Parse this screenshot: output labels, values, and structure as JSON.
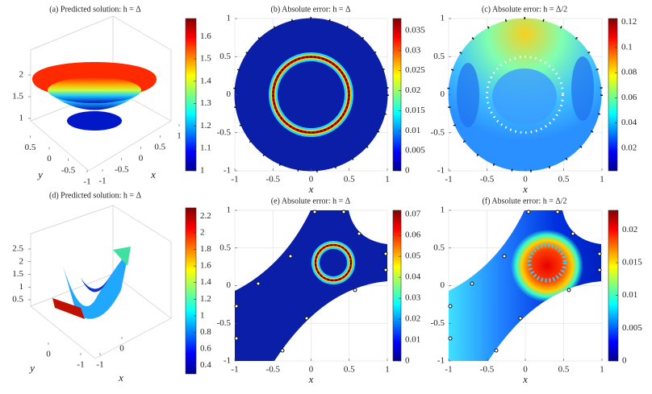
{
  "chart_data": [
    {
      "type": "surface",
      "title": "(a) Predicted solution: h = Δ",
      "xlabel": "x",
      "ylabel": "y",
      "xlim": [
        -1,
        1
      ],
      "ylim": [
        -1,
        1
      ],
      "zlim": [
        1,
        2
      ],
      "xticks": [
        -1,
        -0.5,
        0,
        0.5,
        1
      ],
      "yticks": [
        0.5,
        0,
        -0.5,
        -1
      ],
      "zticks": [
        1,
        1.5,
        2
      ],
      "colormap": "jet",
      "colorbar": {
        "lim": [
          1,
          1.68
        ],
        "ticks": [
          1,
          1.1,
          1.2,
          1.3,
          1.4,
          1.5,
          1.6
        ]
      }
    },
    {
      "type": "heatmap",
      "title": "(b) Absolute error: h = Δ",
      "xlabel": "x",
      "xlim": [
        -1,
        1
      ],
      "ylim": [
        -1,
        1
      ],
      "xticks": [
        -1,
        -0.5,
        0,
        0.5,
        1
      ],
      "yticks": [
        -1,
        -0.5,
        0,
        0.5,
        1
      ],
      "grid": true,
      "colormap": "jet",
      "colorbar": {
        "lim": [
          0,
          0.038
        ],
        "ticks": [
          0,
          0.005,
          0.01,
          0.015,
          0.02,
          0.025,
          0.03,
          0.035
        ]
      }
    },
    {
      "type": "heatmap",
      "title": "(c) Absolute error: h = Δ/2",
      "xlabel": "x",
      "xlim": [
        -1,
        1
      ],
      "ylim": [
        -1,
        1
      ],
      "xticks": [
        -1,
        -0.5,
        0,
        0.5,
        1
      ],
      "yticks": [
        -1,
        -0.5,
        0,
        0.5,
        1
      ],
      "grid": true,
      "colormap": "jet",
      "colorbar": {
        "lim": [
          0.002,
          0.123
        ],
        "ticks": [
          0.02,
          0.04,
          0.06,
          0.08,
          0.1,
          0.12
        ]
      }
    },
    {
      "type": "surface",
      "title": "(d) Predicted solution: h = Δ",
      "xlabel": "x",
      "ylabel": "y",
      "xlim": [
        -1,
        1
      ],
      "ylim": [
        -1,
        1
      ],
      "zlim": [
        0.5,
        2.5
      ],
      "xticks": [
        -1,
        0
      ],
      "yticks": [
        0,
        -1
      ],
      "zticks": [
        0.5,
        1,
        1.5,
        2,
        2.5
      ],
      "colormap": "jet",
      "colorbar": {
        "lim": [
          0.3,
          2.3
        ],
        "ticks": [
          0.4,
          0.6,
          0.8,
          1,
          1.2,
          1.4,
          1.6,
          1.8,
          2,
          2.2
        ]
      }
    },
    {
      "type": "heatmap",
      "title": "(e) Absolute error: h = Δ",
      "xlabel": "x",
      "xlim": [
        -1,
        1
      ],
      "ylim": [
        -1,
        1
      ],
      "xticks": [
        -1,
        -0.5,
        0,
        0.5,
        1
      ],
      "yticks": [
        -1,
        -0.5,
        0,
        0.5,
        1
      ],
      "grid": true,
      "colormap": "jet",
      "colorbar": {
        "lim": [
          0,
          0.072
        ],
        "ticks": [
          0,
          0.01,
          0.02,
          0.03,
          0.04,
          0.05,
          0.06,
          0.07
        ]
      }
    },
    {
      "type": "heatmap",
      "title": "(f) Absolute error: h = Δ/2",
      "xlabel": "x",
      "xlim": [
        -1,
        1
      ],
      "ylim": [
        -1,
        1
      ],
      "xticks": [
        -1,
        -0.5,
        0,
        0.5,
        1
      ],
      "yticks": [
        -1,
        -0.5,
        0,
        0.5,
        1
      ],
      "grid": true,
      "colormap": "jet",
      "colorbar": {
        "lim": [
          0,
          0.023
        ],
        "ticks": [
          0,
          0.005,
          0.01,
          0.015,
          0.02
        ]
      }
    }
  ]
}
